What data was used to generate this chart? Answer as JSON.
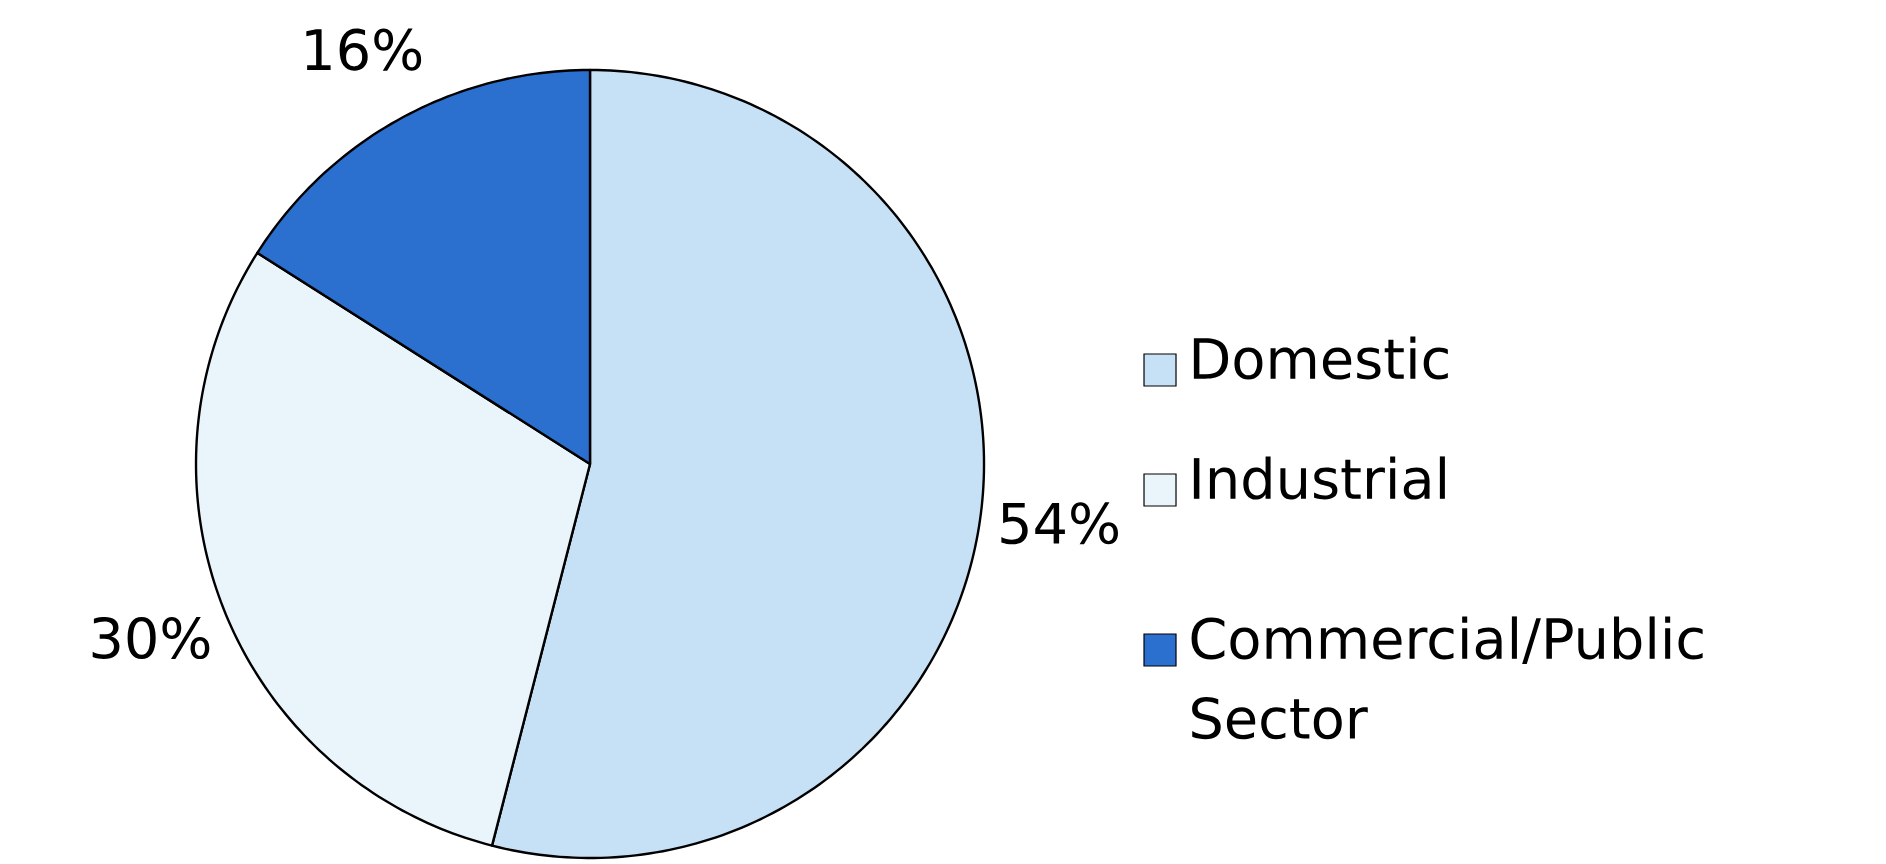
{
  "chart_data": {
    "type": "pie",
    "categories": [
      "Domestic",
      "Industrial",
      "Commercial/Public Sector"
    ],
    "values": [
      54,
      30,
      16
    ],
    "value_labels": [
      "54%",
      "30%",
      "16%"
    ],
    "colors": [
      "#c6e1f6",
      "#eaf4fb",
      "#2b6fcf"
    ],
    "legend": "right"
  }
}
